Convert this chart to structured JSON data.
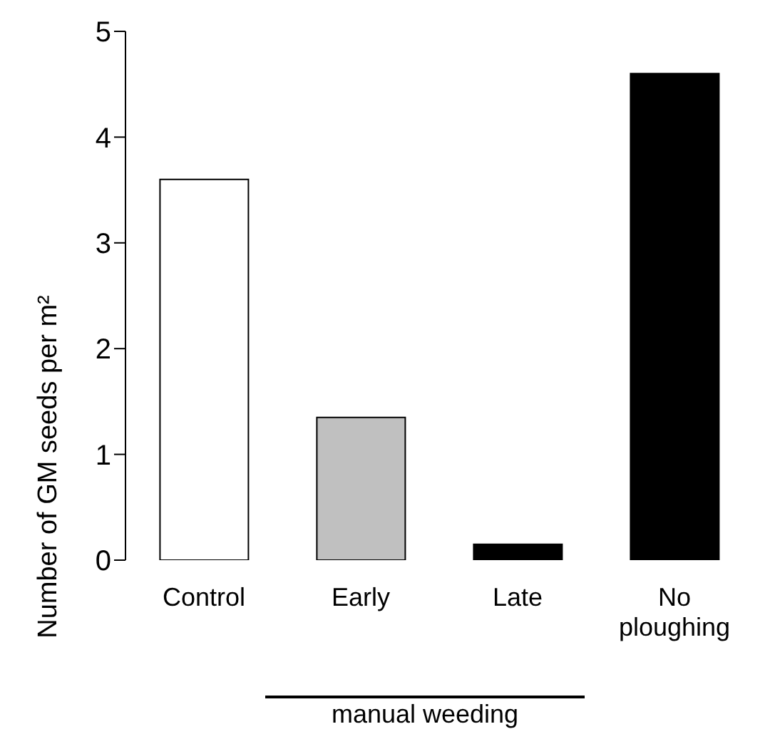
{
  "chart_data": {
    "type": "bar",
    "ylabel": "Number of GM seeds per m²",
    "categories": [
      "Control",
      "Early",
      "Late",
      "No ploughing"
    ],
    "values": [
      3.6,
      1.35,
      0.15,
      4.6
    ],
    "colors": [
      "#ffffff",
      "#c0c0c0",
      "#000000",
      "#000000"
    ],
    "ylim": [
      0,
      5
    ],
    "yticks": [
      0,
      1,
      2,
      3,
      4,
      5
    ],
    "grid": false,
    "legend": false,
    "annotations": [
      "manual weeding"
    ]
  }
}
